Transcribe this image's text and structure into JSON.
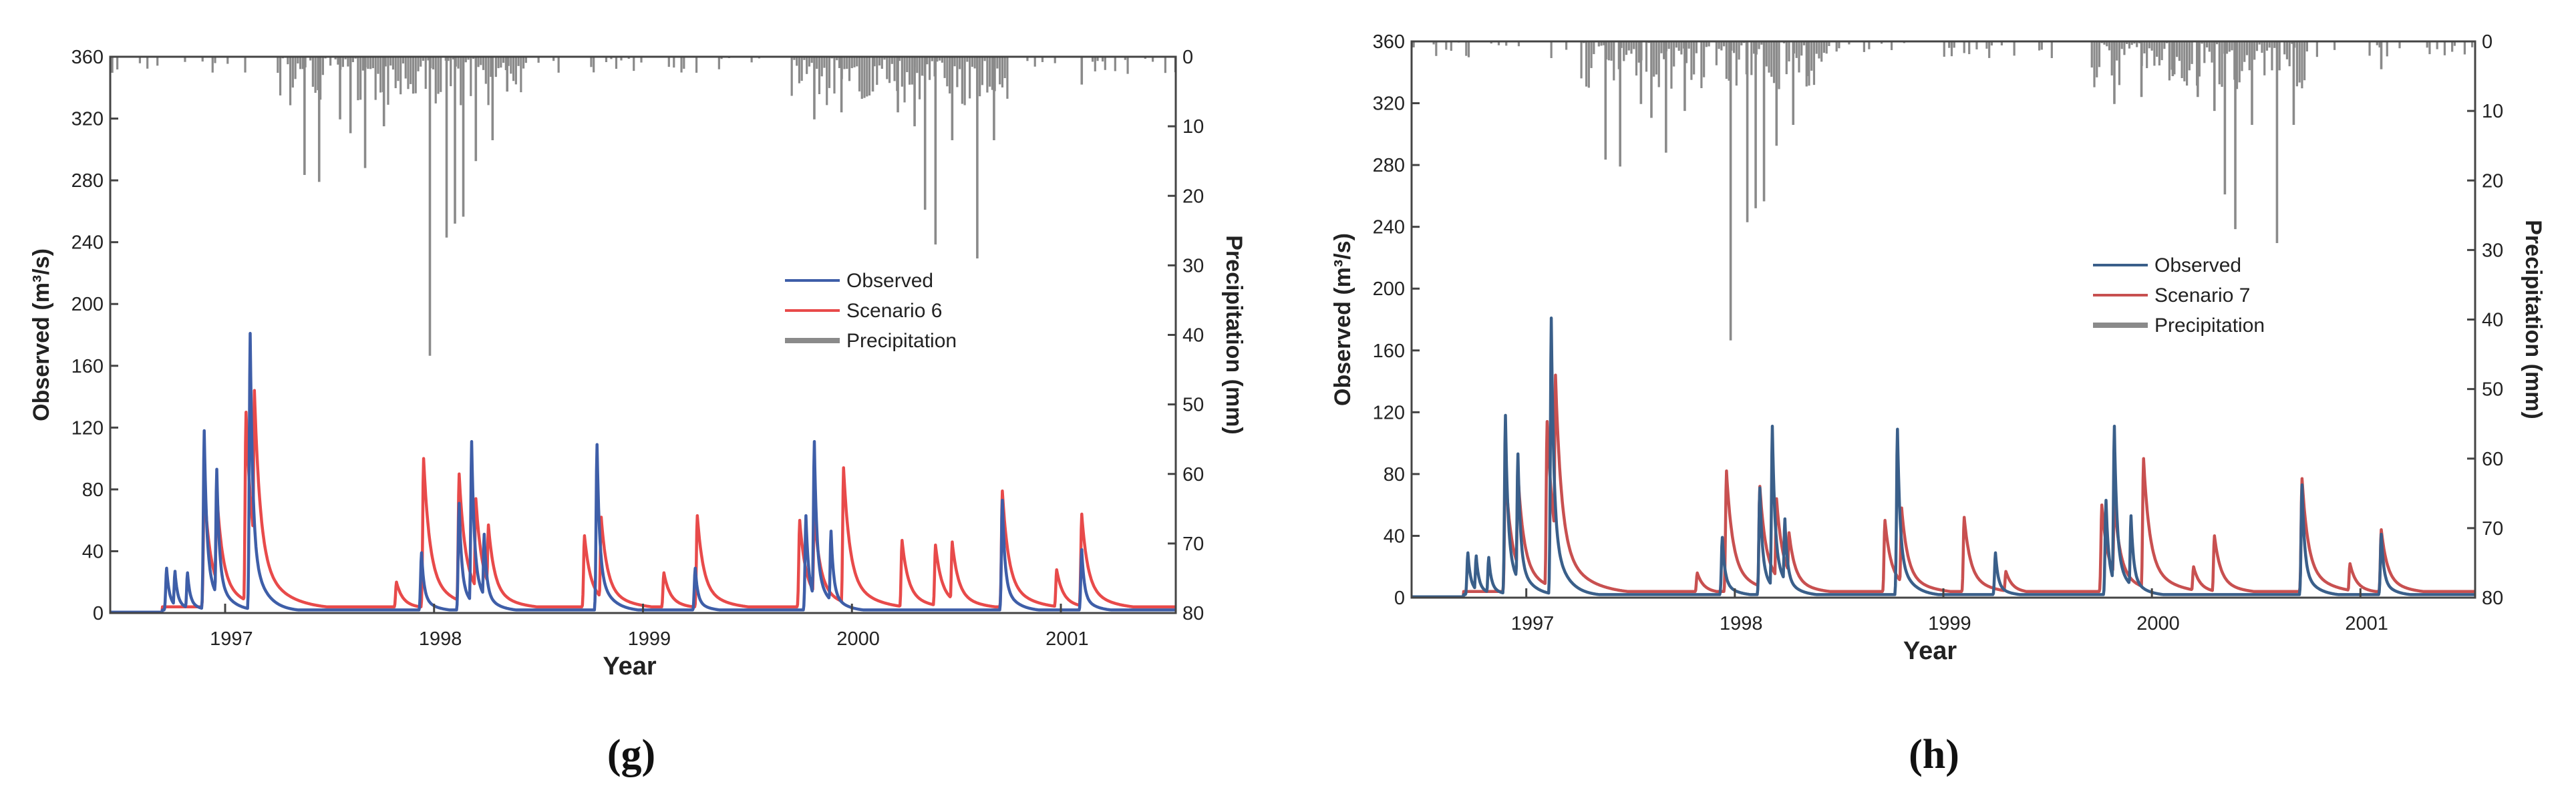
{
  "chart_data": [
    {
      "type": "line",
      "panel_label": "(g)",
      "x_ticks": [
        "1997",
        "1998",
        "1999",
        "2000",
        "2001"
      ],
      "xlabel": "Year",
      "ylabel": "Observed (m³/s)",
      "ylim": [
        0,
        360
      ],
      "y_ticks": [
        "0",
        "40",
        "80",
        "120",
        "160",
        "200",
        "240",
        "280",
        "320",
        "360"
      ],
      "y2label": "Precipitation (mm)",
      "y2lim": [
        0,
        80
      ],
      "y2_inverted": true,
      "y2_ticks": [
        "0",
        "10",
        "20",
        "30",
        "40",
        "50",
        "60",
        "70",
        "80"
      ],
      "legend": [
        "Observed",
        "Scenario 6",
        "Precipitation"
      ],
      "colors": {
        "observed": "#3e5ea8",
        "scenario": "#e84a4a",
        "precip": "#8a8a8a"
      },
      "series": [
        {
          "name": "Observed",
          "peaks": [
            [
              1996.72,
              28
            ],
            [
              1996.76,
              26
            ],
            [
              1996.82,
              25
            ],
            [
              1996.9,
              117
            ],
            [
              1996.96,
              92
            ],
            [
              1997.12,
              180
            ],
            [
              1997.94,
              38
            ],
            [
              1998.12,
              70
            ],
            [
              1998.18,
              110
            ],
            [
              1998.24,
              50
            ],
            [
              1998.78,
              108
            ],
            [
              1999.25,
              28
            ],
            [
              1999.78,
              62
            ],
            [
              1999.82,
              110
            ],
            [
              1999.9,
              52
            ],
            [
              2000.72,
              72
            ],
            [
              2001.1,
              40
            ]
          ]
        },
        {
          "name": "Scenario 6",
          "peaks": [
            [
              1996.9,
              80
            ],
            [
              1996.96,
              76
            ],
            [
              1997.1,
              128
            ],
            [
              1997.14,
              142
            ],
            [
              1997.82,
              18
            ],
            [
              1997.95,
              98
            ],
            [
              1998.12,
              88
            ],
            [
              1998.2,
              72
            ],
            [
              1998.26,
              55
            ],
            [
              1998.72,
              48
            ],
            [
              1998.8,
              60
            ],
            [
              1999.1,
              24
            ],
            [
              1999.26,
              61
            ],
            [
              1999.75,
              58
            ],
            [
              1999.82,
              62
            ],
            [
              1999.96,
              92
            ],
            [
              2000.24,
              45
            ],
            [
              2000.4,
              42
            ],
            [
              2000.48,
              44
            ],
            [
              2000.72,
              77
            ],
            [
              2000.98,
              26
            ],
            [
              2001.1,
              62
            ]
          ]
        },
        {
          "name": "Precipitation",
          "bars": [
            [
              1997.38,
              17
            ],
            [
              1997.45,
              18
            ],
            [
              1997.55,
              9
            ],
            [
              1997.6,
              11
            ],
            [
              1997.67,
              16
            ],
            [
              1997.76,
              10
            ],
            [
              1997.98,
              43
            ],
            [
              1998.06,
              26
            ],
            [
              1998.1,
              24
            ],
            [
              1998.14,
              23
            ],
            [
              1998.2,
              15
            ],
            [
              1998.28,
              12
            ],
            [
              1998.35,
              5
            ],
            [
              1999.82,
              9
            ],
            [
              1999.95,
              8
            ],
            [
              2000.1,
              5
            ],
            [
              2000.22,
              8
            ],
            [
              2000.3,
              10
            ],
            [
              2000.35,
              22
            ],
            [
              2000.4,
              27
            ],
            [
              2000.48,
              12
            ],
            [
              2000.6,
              29
            ],
            [
              2000.68,
              12
            ],
            [
              2001.1,
              4
            ]
          ]
        }
      ]
    },
    {
      "type": "line",
      "panel_label": "(h)",
      "x_ticks": [
        "1997",
        "1998",
        "1999",
        "2000",
        "2001"
      ],
      "xlabel": "Year",
      "ylabel": "Observed (m³/s)",
      "ylim": [
        0,
        360
      ],
      "y_ticks": [
        "0",
        "40",
        "80",
        "120",
        "160",
        "200",
        "240",
        "280",
        "320",
        "360"
      ],
      "y2label": "Precipitation (mm)",
      "y2lim": [
        0,
        80
      ],
      "y2_inverted": true,
      "y2_ticks": [
        "0",
        "10",
        "20",
        "30",
        "40",
        "50",
        "60",
        "70",
        "80"
      ],
      "legend": [
        "Observed",
        "Scenario 7",
        "Precipitation"
      ],
      "colors": {
        "observed": "#3a5f8a",
        "scenario": "#c85050",
        "precip": "#8a8a8a"
      },
      "series": [
        {
          "name": "Observed",
          "peaks": [
            [
              1996.72,
              28
            ],
            [
              1996.76,
              26
            ],
            [
              1996.82,
              25
            ],
            [
              1996.9,
              117
            ],
            [
              1996.96,
              92
            ],
            [
              1997.12,
              180
            ],
            [
              1997.94,
              38
            ],
            [
              1998.12,
              70
            ],
            [
              1998.18,
              110
            ],
            [
              1998.24,
              50
            ],
            [
              1998.78,
              108
            ],
            [
              1999.25,
              28
            ],
            [
              1999.78,
              62
            ],
            [
              1999.82,
              110
            ],
            [
              1999.9,
              52
            ],
            [
              2000.72,
              72
            ],
            [
              2001.1,
              40
            ]
          ]
        },
        {
          "name": "Scenario 7",
          "peaks": [
            [
              1996.9,
              80
            ],
            [
              1996.96,
              78
            ],
            [
              1997.1,
              112
            ],
            [
              1997.14,
              142
            ],
            [
              1997.82,
              14
            ],
            [
              1997.96,
              80
            ],
            [
              1998.12,
              70
            ],
            [
              1998.2,
              62
            ],
            [
              1998.26,
              40
            ],
            [
              1998.72,
              48
            ],
            [
              1998.8,
              56
            ],
            [
              1999.1,
              50
            ],
            [
              1999.3,
              15
            ],
            [
              1999.76,
              58
            ],
            [
              1999.82,
              60
            ],
            [
              1999.96,
              88
            ],
            [
              2000.2,
              18
            ],
            [
              2000.3,
              38
            ],
            [
              2000.72,
              75
            ],
            [
              2000.95,
              20
            ],
            [
              2001.1,
              42
            ]
          ]
        },
        {
          "name": "Precipitation",
          "bars": [
            [
              1997.38,
              17
            ],
            [
              1997.45,
              18
            ],
            [
              1997.55,
              9
            ],
            [
              1997.6,
              11
            ],
            [
              1997.67,
              16
            ],
            [
              1997.76,
              10
            ],
            [
              1997.98,
              43
            ],
            [
              1998.06,
              26
            ],
            [
              1998.1,
              24
            ],
            [
              1998.14,
              23
            ],
            [
              1998.2,
              15
            ],
            [
              1998.28,
              12
            ],
            [
              1998.35,
              5
            ],
            [
              1999.82,
              9
            ],
            [
              1999.95,
              8
            ],
            [
              2000.1,
              5
            ],
            [
              2000.22,
              8
            ],
            [
              2000.3,
              10
            ],
            [
              2000.35,
              22
            ],
            [
              2000.4,
              27
            ],
            [
              2000.48,
              12
            ],
            [
              2000.6,
              29
            ],
            [
              2000.68,
              12
            ],
            [
              2001.1,
              4
            ]
          ]
        }
      ]
    }
  ]
}
